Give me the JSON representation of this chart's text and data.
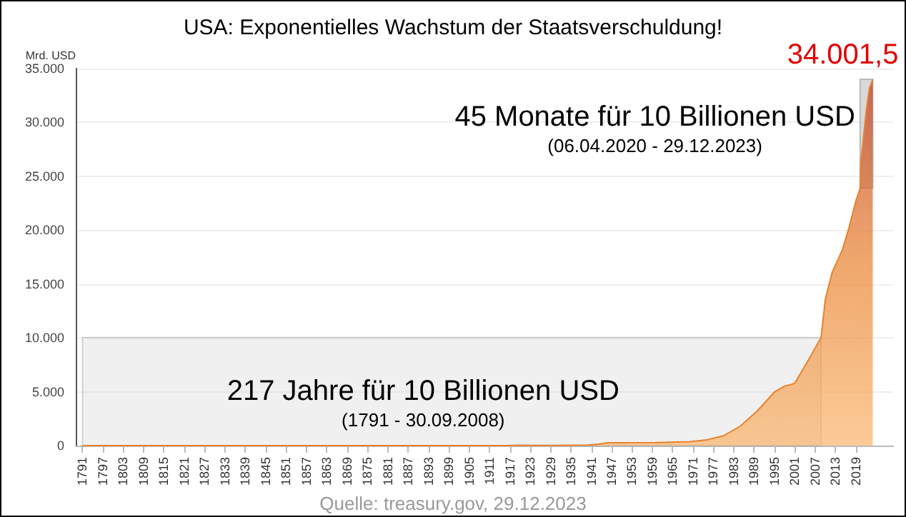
{
  "chart_data": {
    "type": "area",
    "title": "USA: Exponentielles Wachstum der Staatsverschuldung!",
    "ylabel": "Mrd. USD",
    "x": [
      1791,
      1800,
      1835,
      1860,
      1866,
      1900,
      1916,
      1919,
      1930,
      1940,
      1943,
      1946,
      1960,
      1970,
      1975,
      1980,
      1985,
      1990,
      1995,
      1998,
      2000,
      2001,
      2005,
      2008.75,
      2010,
      2012,
      2015,
      2017,
      2019,
      2020.26,
      2020.5,
      2021,
      2022,
      2023,
      2023.99
    ],
    "series": [
      {
        "color": "#e8822e",
        "values": [
          0,
          0,
          0,
          0,
          3,
          2,
          1,
          26,
          16,
          43,
          137,
          269,
          286,
          371,
          533,
          908,
          1823,
          3233,
          4974,
          5526,
          5674,
          5807,
          7933,
          10025,
          13562,
          16066,
          18151,
          20245,
          22719,
          23900,
          26500,
          27750,
          30900,
          33167,
          34001.5
        ],
        "value_labels": [
          null,
          null,
          null,
          null,
          null,
          null,
          null,
          null,
          null,
          null,
          null,
          null,
          null,
          null,
          null,
          null,
          null,
          null,
          null,
          null,
          null,
          null,
          null,
          null,
          null,
          null,
          null,
          null,
          null,
          null,
          null,
          null,
          null,
          null,
          "34.001,5"
        ]
      }
    ],
    "xlim": [
      1789,
      2030
    ],
    "xticks": [
      1791,
      1797,
      1803,
      1809,
      1815,
      1821,
      1827,
      1833,
      1839,
      1845,
      1851,
      1857,
      1863,
      1869,
      1875,
      1881,
      1887,
      1893,
      1899,
      1905,
      1911,
      1917,
      1923,
      1929,
      1935,
      1941,
      1947,
      1953,
      1959,
      1965,
      1971,
      1977,
      1983,
      1989,
      1995,
      2001,
      2007,
      2013,
      2019
    ],
    "ylim": [
      0,
      35000
    ],
    "yticks": [
      {
        "value": 0,
        "label": "0"
      },
      {
        "value": 5000,
        "label": "5.000"
      },
      {
        "value": 10000,
        "label": "10.000"
      },
      {
        "value": 15000,
        "label": "15.000"
      },
      {
        "value": 20000,
        "label": "20.000"
      },
      {
        "value": 25000,
        "label": "25.000"
      },
      {
        "value": 30000,
        "label": "30.000"
      },
      {
        "value": 35000,
        "label": "35.000"
      }
    ],
    "grid": "y",
    "bands": [
      {
        "axis": "x",
        "from": 1791,
        "to": 2008.75,
        "label": "217 Jahre für 10 Billionen USD\n(1791 - 30.09.2008)",
        "color": "#d9d9d9"
      },
      {
        "axis": "x",
        "from": 2020.26,
        "to": 2023.99,
        "label": "45 Monate für 10 Billionen USD\n(06.04.2020 - 29.12.2023)",
        "color": "#bfbfbf"
      }
    ],
    "annotations": [
      "Quelle: treasury.gov, 29.12.2023"
    ]
  }
}
